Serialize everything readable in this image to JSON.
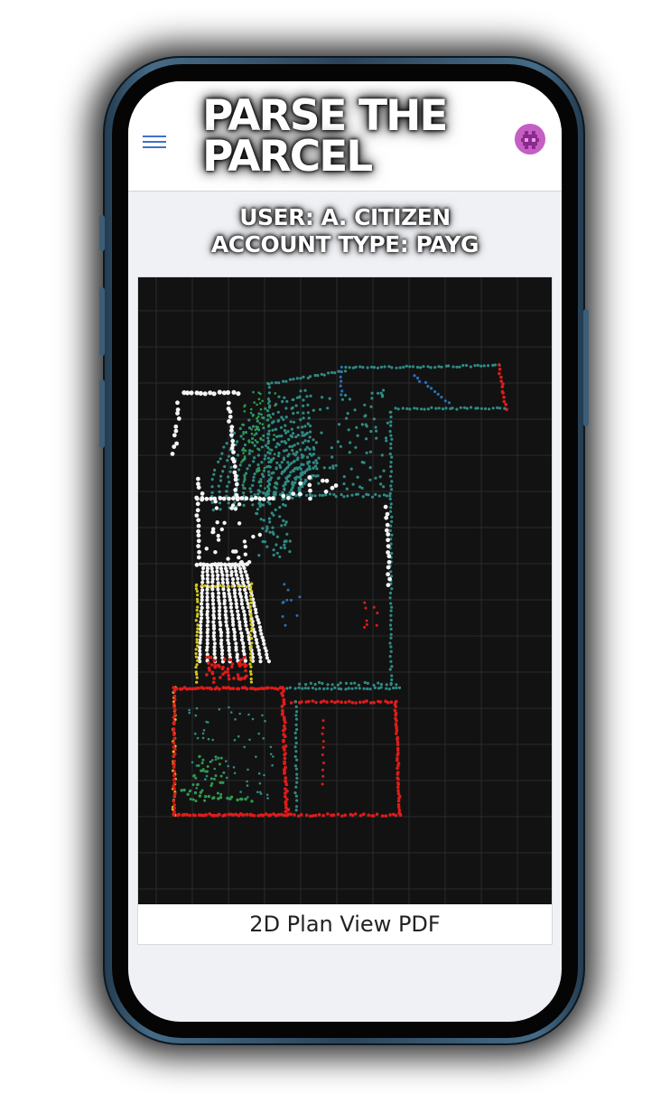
{
  "app": {
    "title_line1": "PARSE THE",
    "title_line2": "PARCEL",
    "menu_icon": "hamburger-menu-icon",
    "avatar_icon": "pixel-invader-avatar-icon",
    "avatar_color": "#c55fc4",
    "accent_color": "#3d72c8"
  },
  "user": {
    "name_line": "USER: A. CITIZEN",
    "account_line": "ACCOUNT TYPE: PAYG"
  },
  "plan": {
    "caption": "2D Plan View PDF",
    "background_color": "#121212",
    "grid_color": "#2b2b2b",
    "point_colors": {
      "white": "#f4f4f4",
      "teal": "#2f8a84",
      "green": "#2f9a4e",
      "red": "#e01b1b",
      "yellow": "#d2c81a",
      "blue": "#2a6fb6"
    }
  }
}
